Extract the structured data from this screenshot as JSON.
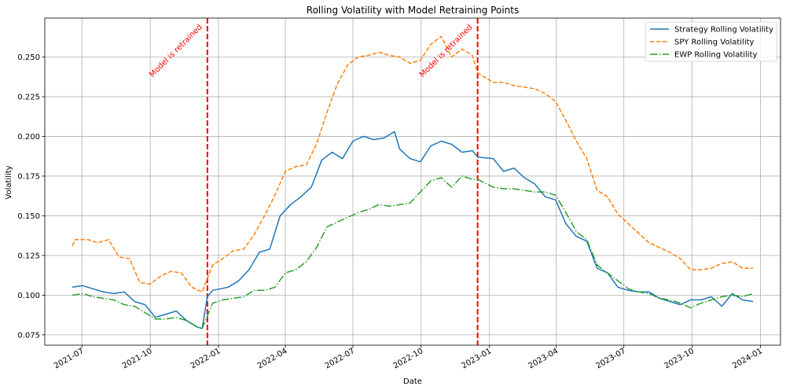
{
  "chart_data": {
    "type": "line",
    "title": "Rolling Volatility with Model Retraining Points",
    "xlabel": "Date",
    "ylabel": "Volatility",
    "xlim": [
      "2021-05-12",
      "2024-01-28"
    ],
    "ylim": [
      0.0685,
      0.2745
    ],
    "grid": true,
    "legend_position": "upper right",
    "x_ticks": [
      "2021-07",
      "2021-10",
      "2022-01",
      "2022-04",
      "2022-07",
      "2022-10",
      "2023-01",
      "2023-04",
      "2023-07",
      "2023-10",
      "2024-01"
    ],
    "y_ticks": [
      "0.075",
      "0.100",
      "0.125",
      "0.150",
      "0.175",
      "0.200",
      "0.225",
      "0.250"
    ],
    "series": [
      {
        "name": "Strategy Rolling Volatility",
        "color": "#1f77b4",
        "style": "solid",
        "points": [
          [
            "2021-06-18",
            0.105
          ],
          [
            "2021-07-02",
            0.106
          ],
          [
            "2021-07-16",
            0.104
          ],
          [
            "2021-07-30",
            0.102
          ],
          [
            "2021-08-13",
            0.101
          ],
          [
            "2021-08-27",
            0.102
          ],
          [
            "2021-09-10",
            0.096
          ],
          [
            "2021-09-24",
            0.094
          ],
          [
            "2021-10-08",
            0.086
          ],
          [
            "2021-10-22",
            0.088
          ],
          [
            "2021-11-05",
            0.09
          ],
          [
            "2021-11-19",
            0.084
          ],
          [
            "2021-12-03",
            0.08
          ],
          [
            "2021-12-10",
            0.079
          ],
          [
            "2021-12-17",
            0.099
          ],
          [
            "2021-12-24",
            0.103
          ],
          [
            "2022-01-14",
            0.105
          ],
          [
            "2022-01-28",
            0.109
          ],
          [
            "2022-02-11",
            0.116
          ],
          [
            "2022-02-25",
            0.127
          ],
          [
            "2022-03-11",
            0.129
          ],
          [
            "2022-03-25",
            0.15
          ],
          [
            "2022-04-08",
            0.157
          ],
          [
            "2022-04-22",
            0.162
          ],
          [
            "2022-05-06",
            0.168
          ],
          [
            "2022-05-20",
            0.185
          ],
          [
            "2022-06-03",
            0.19
          ],
          [
            "2022-06-17",
            0.186
          ],
          [
            "2022-07-01",
            0.197
          ],
          [
            "2022-07-15",
            0.2
          ],
          [
            "2022-07-29",
            0.198
          ],
          [
            "2022-08-12",
            0.199
          ],
          [
            "2022-08-26",
            0.203
          ],
          [
            "2022-09-02",
            0.192
          ],
          [
            "2022-09-16",
            0.186
          ],
          [
            "2022-09-30",
            0.184
          ],
          [
            "2022-10-14",
            0.194
          ],
          [
            "2022-10-28",
            0.197
          ],
          [
            "2022-11-11",
            0.195
          ],
          [
            "2022-11-25",
            0.19
          ],
          [
            "2022-12-09",
            0.191
          ],
          [
            "2022-12-16",
            0.187
          ],
          [
            "2023-01-06",
            0.186
          ],
          [
            "2023-01-20",
            0.178
          ],
          [
            "2023-02-03",
            0.18
          ],
          [
            "2023-02-17",
            0.174
          ],
          [
            "2023-03-03",
            0.17
          ],
          [
            "2023-03-17",
            0.162
          ],
          [
            "2023-03-31",
            0.16
          ],
          [
            "2023-04-14",
            0.145
          ],
          [
            "2023-04-28",
            0.137
          ],
          [
            "2023-05-12",
            0.134
          ],
          [
            "2023-05-26",
            0.117
          ],
          [
            "2023-06-09",
            0.114
          ],
          [
            "2023-06-23",
            0.105
          ],
          [
            "2023-07-07",
            0.103
          ],
          [
            "2023-07-21",
            0.102
          ],
          [
            "2023-08-04",
            0.102
          ],
          [
            "2023-08-18",
            0.098
          ],
          [
            "2023-09-01",
            0.096
          ],
          [
            "2023-09-15",
            0.094
          ],
          [
            "2023-09-29",
            0.097
          ],
          [
            "2023-10-13",
            0.097
          ],
          [
            "2023-10-27",
            0.099
          ],
          [
            "2023-11-10",
            0.093
          ],
          [
            "2023-11-24",
            0.101
          ],
          [
            "2023-12-08",
            0.097
          ],
          [
            "2023-12-22",
            0.096
          ]
        ]
      },
      {
        "name": "SPY Rolling Volatility",
        "color": "#ff7f0e",
        "style": "dashed",
        "points": [
          [
            "2021-06-18",
            0.131
          ],
          [
            "2021-06-22",
            0.135
          ],
          [
            "2021-07-09",
            0.135
          ],
          [
            "2021-07-23",
            0.133
          ],
          [
            "2021-08-06",
            0.135
          ],
          [
            "2021-08-20",
            0.124
          ],
          [
            "2021-09-03",
            0.123
          ],
          [
            "2021-09-17",
            0.108
          ],
          [
            "2021-10-01",
            0.107
          ],
          [
            "2021-10-15",
            0.112
          ],
          [
            "2021-10-29",
            0.115
          ],
          [
            "2021-11-12",
            0.114
          ],
          [
            "2021-11-26",
            0.105
          ],
          [
            "2021-12-10",
            0.102
          ],
          [
            "2021-12-24",
            0.119
          ],
          [
            "2022-01-07",
            0.123
          ],
          [
            "2022-01-21",
            0.128
          ],
          [
            "2022-02-04",
            0.129
          ],
          [
            "2022-02-18",
            0.138
          ],
          [
            "2022-03-04",
            0.15
          ],
          [
            "2022-03-18",
            0.163
          ],
          [
            "2022-04-01",
            0.178
          ],
          [
            "2022-04-15",
            0.181
          ],
          [
            "2022-04-29",
            0.182
          ],
          [
            "2022-05-13",
            0.195
          ],
          [
            "2022-05-27",
            0.215
          ],
          [
            "2022-06-10",
            0.233
          ],
          [
            "2022-06-24",
            0.245
          ],
          [
            "2022-07-08",
            0.25
          ],
          [
            "2022-07-22",
            0.251
          ],
          [
            "2022-08-05",
            0.253
          ],
          [
            "2022-08-19",
            0.251
          ],
          [
            "2022-09-02",
            0.25
          ],
          [
            "2022-09-16",
            0.246
          ],
          [
            "2022-09-30",
            0.248
          ],
          [
            "2022-10-14",
            0.258
          ],
          [
            "2022-10-28",
            0.263
          ],
          [
            "2022-11-11",
            0.25
          ],
          [
            "2022-11-25",
            0.255
          ],
          [
            "2022-12-09",
            0.251
          ],
          [
            "2022-12-16",
            0.24
          ],
          [
            "2023-01-06",
            0.234
          ],
          [
            "2023-01-20",
            0.234
          ],
          [
            "2023-02-03",
            0.232
          ],
          [
            "2023-02-17",
            0.231
          ],
          [
            "2023-03-03",
            0.23
          ],
          [
            "2023-03-17",
            0.227
          ],
          [
            "2023-03-31",
            0.222
          ],
          [
            "2023-04-14",
            0.21
          ],
          [
            "2023-04-28",
            0.197
          ],
          [
            "2023-05-12",
            0.186
          ],
          [
            "2023-05-26",
            0.166
          ],
          [
            "2023-06-09",
            0.162
          ],
          [
            "2023-06-23",
            0.151
          ],
          [
            "2023-07-07",
            0.145
          ],
          [
            "2023-07-21",
            0.139
          ],
          [
            "2023-08-04",
            0.133
          ],
          [
            "2023-08-18",
            0.13
          ],
          [
            "2023-09-01",
            0.127
          ],
          [
            "2023-09-15",
            0.123
          ],
          [
            "2023-09-29",
            0.116
          ],
          [
            "2023-10-13",
            0.116
          ],
          [
            "2023-10-27",
            0.117
          ],
          [
            "2023-11-10",
            0.12
          ],
          [
            "2023-11-24",
            0.121
          ],
          [
            "2023-12-08",
            0.117
          ],
          [
            "2023-12-22",
            0.117
          ]
        ]
      },
      {
        "name": "EWP Rolling Volatility",
        "color": "#2ca02c",
        "style": "dashdot",
        "points": [
          [
            "2021-06-18",
            0.1
          ],
          [
            "2021-07-02",
            0.101
          ],
          [
            "2021-07-16",
            0.099
          ],
          [
            "2021-07-30",
            0.098
          ],
          [
            "2021-08-13",
            0.097
          ],
          [
            "2021-08-27",
            0.094
          ],
          [
            "2021-09-10",
            0.093
          ],
          [
            "2021-09-24",
            0.089
          ],
          [
            "2021-10-08",
            0.085
          ],
          [
            "2021-10-22",
            0.085
          ],
          [
            "2021-11-05",
            0.086
          ],
          [
            "2021-11-19",
            0.084
          ],
          [
            "2021-12-03",
            0.08
          ],
          [
            "2021-12-10",
            0.079
          ],
          [
            "2021-12-24",
            0.095
          ],
          [
            "2022-01-07",
            0.097
          ],
          [
            "2022-01-21",
            0.098
          ],
          [
            "2022-02-04",
            0.099
          ],
          [
            "2022-02-18",
            0.103
          ],
          [
            "2022-03-04",
            0.103
          ],
          [
            "2022-03-18",
            0.105
          ],
          [
            "2022-04-01",
            0.114
          ],
          [
            "2022-04-15",
            0.116
          ],
          [
            "2022-04-29",
            0.121
          ],
          [
            "2022-05-13",
            0.13
          ],
          [
            "2022-05-27",
            0.143
          ],
          [
            "2022-06-10",
            0.146
          ],
          [
            "2022-06-24",
            0.149
          ],
          [
            "2022-07-08",
            0.152
          ],
          [
            "2022-07-22",
            0.154
          ],
          [
            "2022-08-05",
            0.157
          ],
          [
            "2022-08-19",
            0.156
          ],
          [
            "2022-09-02",
            0.157
          ],
          [
            "2022-09-16",
            0.158
          ],
          [
            "2022-09-30",
            0.165
          ],
          [
            "2022-10-14",
            0.172
          ],
          [
            "2022-10-28",
            0.174
          ],
          [
            "2022-11-11",
            0.168
          ],
          [
            "2022-11-25",
            0.175
          ],
          [
            "2022-12-09",
            0.173
          ],
          [
            "2022-12-16",
            0.173
          ],
          [
            "2023-01-06",
            0.168
          ],
          [
            "2023-01-20",
            0.167
          ],
          [
            "2023-02-03",
            0.167
          ],
          [
            "2023-02-17",
            0.166
          ],
          [
            "2023-03-03",
            0.165
          ],
          [
            "2023-03-17",
            0.165
          ],
          [
            "2023-03-31",
            0.163
          ],
          [
            "2023-04-14",
            0.152
          ],
          [
            "2023-04-28",
            0.14
          ],
          [
            "2023-05-12",
            0.135
          ],
          [
            "2023-05-26",
            0.119
          ],
          [
            "2023-06-09",
            0.114
          ],
          [
            "2023-06-23",
            0.109
          ],
          [
            "2023-07-07",
            0.104
          ],
          [
            "2023-07-21",
            0.102
          ],
          [
            "2023-08-04",
            0.101
          ],
          [
            "2023-08-18",
            0.098
          ],
          [
            "2023-09-01",
            0.097
          ],
          [
            "2023-09-15",
            0.095
          ],
          [
            "2023-09-29",
            0.092
          ],
          [
            "2023-10-13",
            0.095
          ],
          [
            "2023-10-27",
            0.097
          ],
          [
            "2023-11-10",
            0.099
          ],
          [
            "2023-11-24",
            0.1
          ],
          [
            "2023-12-08",
            0.099
          ],
          [
            "2023-12-22",
            0.101
          ]
        ]
      }
    ],
    "retraining_points": [
      {
        "date": "2021-12-17",
        "label": "Model is retrained",
        "color": "#ff0000"
      },
      {
        "date": "2022-12-16",
        "label": "Model is retrained",
        "color": "#ff0000"
      }
    ]
  }
}
